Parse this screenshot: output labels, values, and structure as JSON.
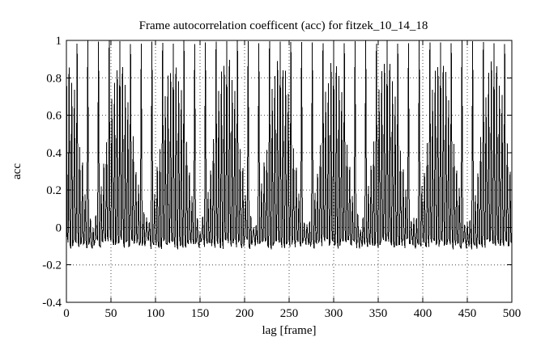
{
  "chart_data": {
    "type": "line",
    "plot_style": "gnuplot impulse-like line plot of autocorrelation vs lag",
    "title": "Frame autocorrelation coefficent (acc) for fitzek_10_14_18",
    "xlabel": "lag [frame]",
    "ylabel": "acc",
    "xlim": [
      0,
      500
    ],
    "ylim": [
      -0.4,
      1
    ],
    "xticks": [
      0,
      50,
      100,
      150,
      200,
      250,
      300,
      350,
      400,
      450,
      500
    ],
    "yticks": [
      1,
      0.8,
      0.6,
      0.4,
      0.2,
      0,
      -0.2,
      -0.4
    ],
    "grid": "dotted",
    "legend": "none",
    "line_color": "#000000",
    "background_color": "#ffffff",
    "pattern": {
      "description": "Comb of autocorrelation peaks: value ~1.0 at every lag multiple of 12 (GOP period), secondary peaks at every lag multiple of 3 whose height is slowly modulated between ~0.0 and ~0.88 with period ~60 lags, and a dense noisy baseline around -0.07 elsewhere, spanning lags 0 to 500.",
      "lag_max": 500,
      "main_peak_period": 12,
      "main_peak_value": 1.0,
      "main_peak_jitter": 0.02,
      "sub_peak_period": 3,
      "sub_peak_base": 0.45,
      "sub_peak_amp": 0.43,
      "sub_peak_mod_period": 60,
      "sub_peak_noise": 0.08,
      "baseline_mean": -0.073,
      "baseline_noise_amp": 0.03
    }
  }
}
